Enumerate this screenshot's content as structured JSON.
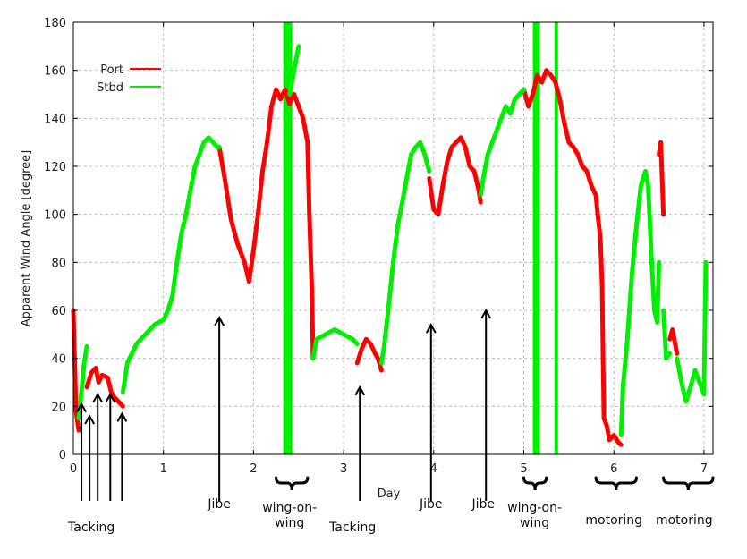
{
  "chart_data": {
    "type": "line",
    "xlabel": "Day",
    "ylabel": "Apparent Wind Angle [degree]",
    "xlim": [
      0,
      7.1
    ],
    "ylim": [
      0,
      180
    ],
    "x_ticks": [
      0,
      1,
      2,
      3,
      4,
      5,
      6,
      7
    ],
    "y_ticks": [
      0,
      20,
      40,
      60,
      80,
      100,
      120,
      140,
      160,
      180
    ],
    "grid": true,
    "legend_position": "top-left",
    "series": [
      {
        "name": "Port",
        "color": "#ff0000",
        "segments": [
          [
            [
              0.0,
              60
            ],
            [
              0.03,
              18
            ],
            [
              0.06,
              10
            ]
          ],
          [
            [
              0.15,
              28
            ],
            [
              0.2,
              34
            ],
            [
              0.25,
              36
            ],
            [
              0.28,
              30
            ],
            [
              0.32,
              33
            ],
            [
              0.38,
              32
            ],
            [
              0.42,
              26
            ],
            [
              0.45,
              24
            ],
            [
              0.5,
              22
            ],
            [
              0.55,
              20
            ]
          ],
          [
            [
              1.62,
              128
            ],
            [
              1.68,
              115
            ],
            [
              1.75,
              98
            ],
            [
              1.82,
              88
            ],
            [
              1.9,
              80
            ],
            [
              1.95,
              72
            ],
            [
              2.0,
              85
            ],
            [
              2.05,
              100
            ],
            [
              2.1,
              118
            ],
            [
              2.15,
              130
            ],
            [
              2.2,
              145
            ],
            [
              2.25,
              152
            ],
            [
              2.3,
              148
            ],
            [
              2.35,
              152
            ],
            [
              2.4,
              146
            ],
            [
              2.45,
              150
            ],
            [
              2.5,
              145
            ],
            [
              2.55,
              140
            ],
            [
              2.6,
              130
            ],
            [
              2.62,
              100
            ],
            [
              2.65,
              65
            ],
            [
              2.66,
              40
            ]
          ],
          [
            [
              3.15,
              38
            ],
            [
              3.2,
              44
            ],
            [
              3.25,
              48
            ],
            [
              3.3,
              46
            ],
            [
              3.35,
              42
            ],
            [
              3.38,
              40
            ],
            [
              3.42,
              35
            ]
          ],
          [
            [
              3.95,
              115
            ],
            [
              4.0,
              102
            ],
            [
              4.05,
              100
            ],
            [
              4.1,
              112
            ],
            [
              4.15,
              122
            ],
            [
              4.2,
              128
            ],
            [
              4.25,
              130
            ],
            [
              4.3,
              132
            ],
            [
              4.35,
              128
            ],
            [
              4.4,
              120
            ],
            [
              4.45,
              118
            ],
            [
              4.5,
              110
            ],
            [
              4.52,
              105
            ]
          ],
          [
            [
              5.0,
              152
            ],
            [
              5.05,
              145
            ],
            [
              5.1,
              150
            ],
            [
              5.15,
              158
            ],
            [
              5.2,
              155
            ],
            [
              5.25,
              160
            ],
            [
              5.3,
              158
            ],
            [
              5.35,
              155
            ],
            [
              5.4,
              148
            ],
            [
              5.45,
              138
            ],
            [
              5.5,
              130
            ],
            [
              5.55,
              128
            ],
            [
              5.6,
              125
            ],
            [
              5.65,
              120
            ],
            [
              5.7,
              118
            ],
            [
              5.75,
              112
            ],
            [
              5.8,
              108
            ],
            [
              5.82,
              100
            ],
            [
              5.85,
              90
            ],
            [
              5.87,
              70
            ],
            [
              5.88,
              40
            ],
            [
              5.89,
              15
            ],
            [
              5.92,
              12
            ],
            [
              5.95,
              6
            ],
            [
              6.0,
              8
            ],
            [
              6.05,
              5
            ],
            [
              6.08,
              4
            ]
          ],
          [
            [
              6.5,
              125
            ],
            [
              6.52,
              130
            ],
            [
              6.55,
              100
            ]
          ],
          [
            [
              6.62,
              48
            ],
            [
              6.65,
              52
            ],
            [
              6.7,
              42
            ]
          ]
        ]
      },
      {
        "name": "Stbd",
        "color": "#00ee00",
        "segments": [
          [
            [
              0.06,
              15
            ],
            [
              0.1,
              30
            ],
            [
              0.12,
              38
            ],
            [
              0.15,
              45
            ]
          ],
          [
            [
              0.55,
              26
            ],
            [
              0.6,
              38
            ],
            [
              0.7,
              46
            ],
            [
              0.8,
              50
            ],
            [
              0.9,
              54
            ],
            [
              1.0,
              56
            ],
            [
              1.05,
              60
            ],
            [
              1.1,
              66
            ],
            [
              1.15,
              80
            ],
            [
              1.2,
              92
            ],
            [
              1.25,
              100
            ],
            [
              1.3,
              110
            ],
            [
              1.35,
              120
            ],
            [
              1.4,
              125
            ],
            [
              1.45,
              130
            ],
            [
              1.5,
              132
            ],
            [
              1.55,
              130
            ],
            [
              1.6,
              128
            ],
            [
              1.62,
              128
            ]
          ],
          [
            [
              2.4,
              150
            ],
            [
              2.45,
              160
            ],
            [
              2.5,
              170
            ]
          ],
          [
            [
              2.66,
              40
            ],
            [
              2.7,
              48
            ],
            [
              2.8,
              50
            ],
            [
              2.9,
              52
            ],
            [
              3.0,
              50
            ],
            [
              3.1,
              48
            ],
            [
              3.15,
              46
            ]
          ],
          [
            [
              3.42,
              38
            ],
            [
              3.45,
              45
            ],
            [
              3.5,
              62
            ],
            [
              3.55,
              80
            ],
            [
              3.6,
              95
            ],
            [
              3.65,
              105
            ],
            [
              3.7,
              115
            ],
            [
              3.75,
              125
            ],
            [
              3.8,
              128
            ],
            [
              3.85,
              130
            ],
            [
              3.9,
              125
            ],
            [
              3.95,
              118
            ]
          ],
          [
            [
              4.52,
              108
            ],
            [
              4.55,
              115
            ],
            [
              4.6,
              125
            ],
            [
              4.65,
              130
            ],
            [
              4.7,
              135
            ],
            [
              4.75,
              140
            ],
            [
              4.8,
              145
            ],
            [
              4.85,
              142
            ],
            [
              4.9,
              148
            ],
            [
              4.95,
              150
            ],
            [
              5.0,
              152
            ]
          ],
          [
            [
              6.08,
              8
            ],
            [
              6.1,
              28
            ],
            [
              6.15,
              48
            ],
            [
              6.2,
              75
            ],
            [
              6.25,
              95
            ],
            [
              6.3,
              112
            ],
            [
              6.35,
              118
            ],
            [
              6.38,
              112
            ],
            [
              6.42,
              80
            ],
            [
              6.45,
              60
            ],
            [
              6.48,
              55
            ],
            [
              6.5,
              80
            ]
          ],
          [
            [
              6.55,
              60
            ],
            [
              6.58,
              40
            ],
            [
              6.62,
              42
            ]
          ],
          [
            [
              6.7,
              40
            ],
            [
              6.75,
              30
            ],
            [
              6.8,
              22
            ],
            [
              6.85,
              28
            ],
            [
              6.9,
              35
            ],
            [
              6.95,
              30
            ],
            [
              7.0,
              25
            ],
            [
              7.02,
              80
            ]
          ]
        ]
      }
    ],
    "bands": [
      {
        "series": "Stbd",
        "x0": 2.33,
        "x1": 2.43
      },
      {
        "series": "Stbd",
        "x0": 5.1,
        "x1": 5.18
      },
      {
        "series": "Stbd",
        "x0": 5.34,
        "x1": 5.38
      }
    ],
    "annotations": [
      {
        "label": "Tacking",
        "x": [
          0.09,
          0.18,
          0.27,
          0.41,
          0.54
        ],
        "arrow_y": [
          21,
          16,
          25,
          25,
          17
        ],
        "label_day": 0.2
      },
      {
        "label": "Jibe",
        "x": [
          1.62
        ],
        "arrow_y": [
          57
        ],
        "label_day": 1.62
      },
      {
        "label": "wing-on-wing",
        "bracket": [
          2.25,
          2.6
        ],
        "label_day": 2.4
      },
      {
        "label": "Tacking",
        "x": [
          3.18
        ],
        "arrow_y": [
          28
        ],
        "label_day": 3.1
      },
      {
        "label": "Jibe",
        "x": [
          3.97
        ],
        "arrow_y": [
          54
        ],
        "label_day": 3.97
      },
      {
        "label": "Jibe",
        "x": [
          4.58
        ],
        "arrow_y": [
          60
        ],
        "label_day": 4.55
      },
      {
        "label": "wing-on-wing",
        "bracket": [
          5.0,
          5.25
        ],
        "label_day": 5.12
      },
      {
        "label": "motoring",
        "bracket": [
          5.8,
          6.25
        ],
        "label_day": 6.0
      },
      {
        "label": "motoring",
        "bracket": [
          6.55,
          7.1
        ],
        "label_day": 6.78
      }
    ]
  }
}
